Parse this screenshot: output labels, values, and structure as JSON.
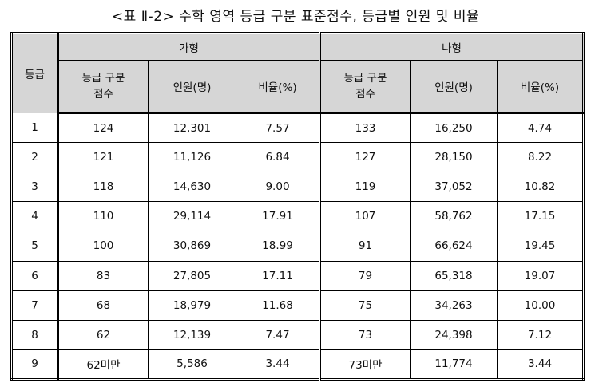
{
  "caption": "<표 Ⅱ-2> 수학 영역 등급 구분 표준점수, 등급별 인원 및 비율",
  "table": {
    "grade_header": "등급",
    "group_a": "가형",
    "group_b": "나형",
    "cut_line1": "등급 구분",
    "cut_line2": "점수",
    "count_header": "인원(명)",
    "ratio_header": "비율(%)",
    "rows": [
      {
        "grade": "1",
        "a_cut": "124",
        "a_count": "12,301",
        "a_ratio": "7.57",
        "b_cut": "133",
        "b_count": "16,250",
        "b_ratio": "4.74"
      },
      {
        "grade": "2",
        "a_cut": "121",
        "a_count": "11,126",
        "a_ratio": "6.84",
        "b_cut": "127",
        "b_count": "28,150",
        "b_ratio": "8.22"
      },
      {
        "grade": "3",
        "a_cut": "118",
        "a_count": "14,630",
        "a_ratio": "9.00",
        "b_cut": "119",
        "b_count": "37,052",
        "b_ratio": "10.82"
      },
      {
        "grade": "4",
        "a_cut": "110",
        "a_count": "29,114",
        "a_ratio": "17.91",
        "b_cut": "107",
        "b_count": "58,762",
        "b_ratio": "17.15"
      },
      {
        "grade": "5",
        "a_cut": "100",
        "a_count": "30,869",
        "a_ratio": "18.99",
        "b_cut": "91",
        "b_count": "66,624",
        "b_ratio": "19.45"
      },
      {
        "grade": "6",
        "a_cut": "83",
        "a_count": "27,805",
        "a_ratio": "17.11",
        "b_cut": "79",
        "b_count": "65,318",
        "b_ratio": "19.07"
      },
      {
        "grade": "7",
        "a_cut": "68",
        "a_count": "18,979",
        "a_ratio": "11.68",
        "b_cut": "75",
        "b_count": "34,263",
        "b_ratio": "10.00"
      },
      {
        "grade": "8",
        "a_cut": "62",
        "a_count": "12,139",
        "a_ratio": "7.47",
        "b_cut": "73",
        "b_count": "24,398",
        "b_ratio": "7.12"
      },
      {
        "grade": "9",
        "a_cut": "62미만",
        "a_count": "5,586",
        "a_ratio": "3.44",
        "b_cut": "73미만",
        "b_count": "11,774",
        "b_ratio": "3.44"
      }
    ]
  }
}
